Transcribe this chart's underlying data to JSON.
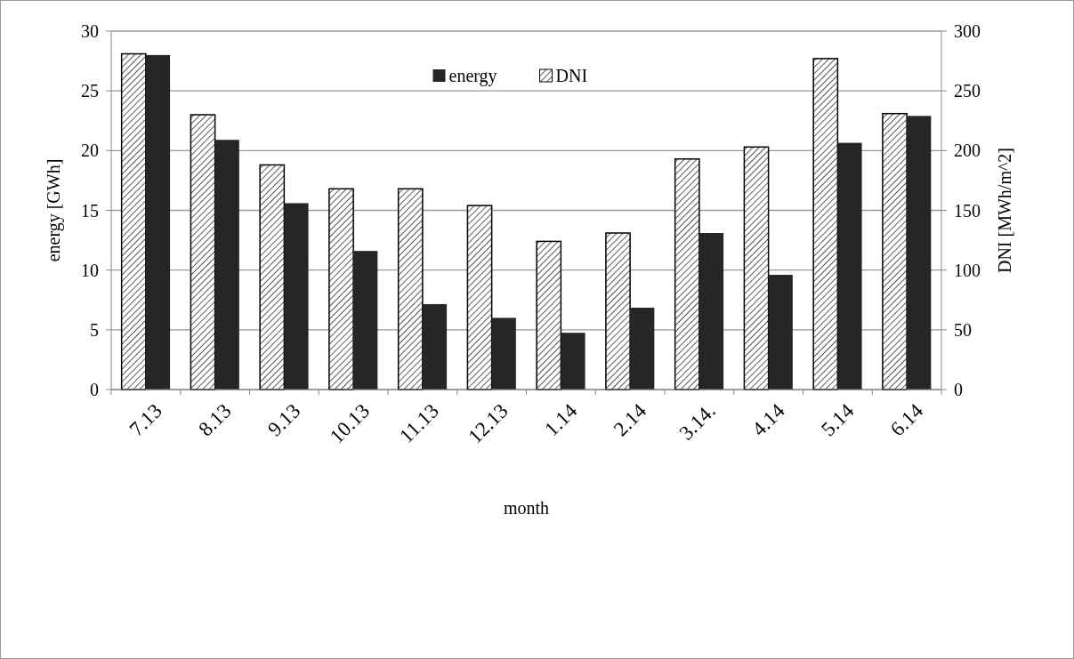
{
  "chart_data": {
    "type": "bar",
    "xlabel": "month",
    "ylabel": "energy [GWh]",
    "y2label": "DNI [MWh/m^2]",
    "categories": [
      "7.13",
      "8.13",
      "9.13",
      "10.13",
      "11.13",
      "12.13",
      "1.14",
      "2.14",
      "3.14.",
      "4.14",
      "5.14",
      "6.14"
    ],
    "series": [
      {
        "name": "DNI",
        "color": "#000000",
        "axis": "y2",
        "values": [
          281,
          230,
          188,
          168,
          168,
          154,
          124,
          131,
          193,
          203,
          277,
          231
        ]
      },
      {
        "name": "energy",
        "color": "#262626",
        "values": [
          28.0,
          20.9,
          15.6,
          11.6,
          7.15,
          6.0,
          4.75,
          6.85,
          13.1,
          9.6,
          20.65,
          22.9
        ]
      }
    ],
    "ylim": [
      0,
      30
    ],
    "yticks": [
      0,
      5,
      10,
      15,
      20,
      25,
      30
    ],
    "y2lim": [
      0,
      300
    ],
    "y2ticks": [
      0,
      50,
      100,
      150,
      200,
      250,
      300
    ],
    "grid": "y",
    "legend": "top"
  }
}
